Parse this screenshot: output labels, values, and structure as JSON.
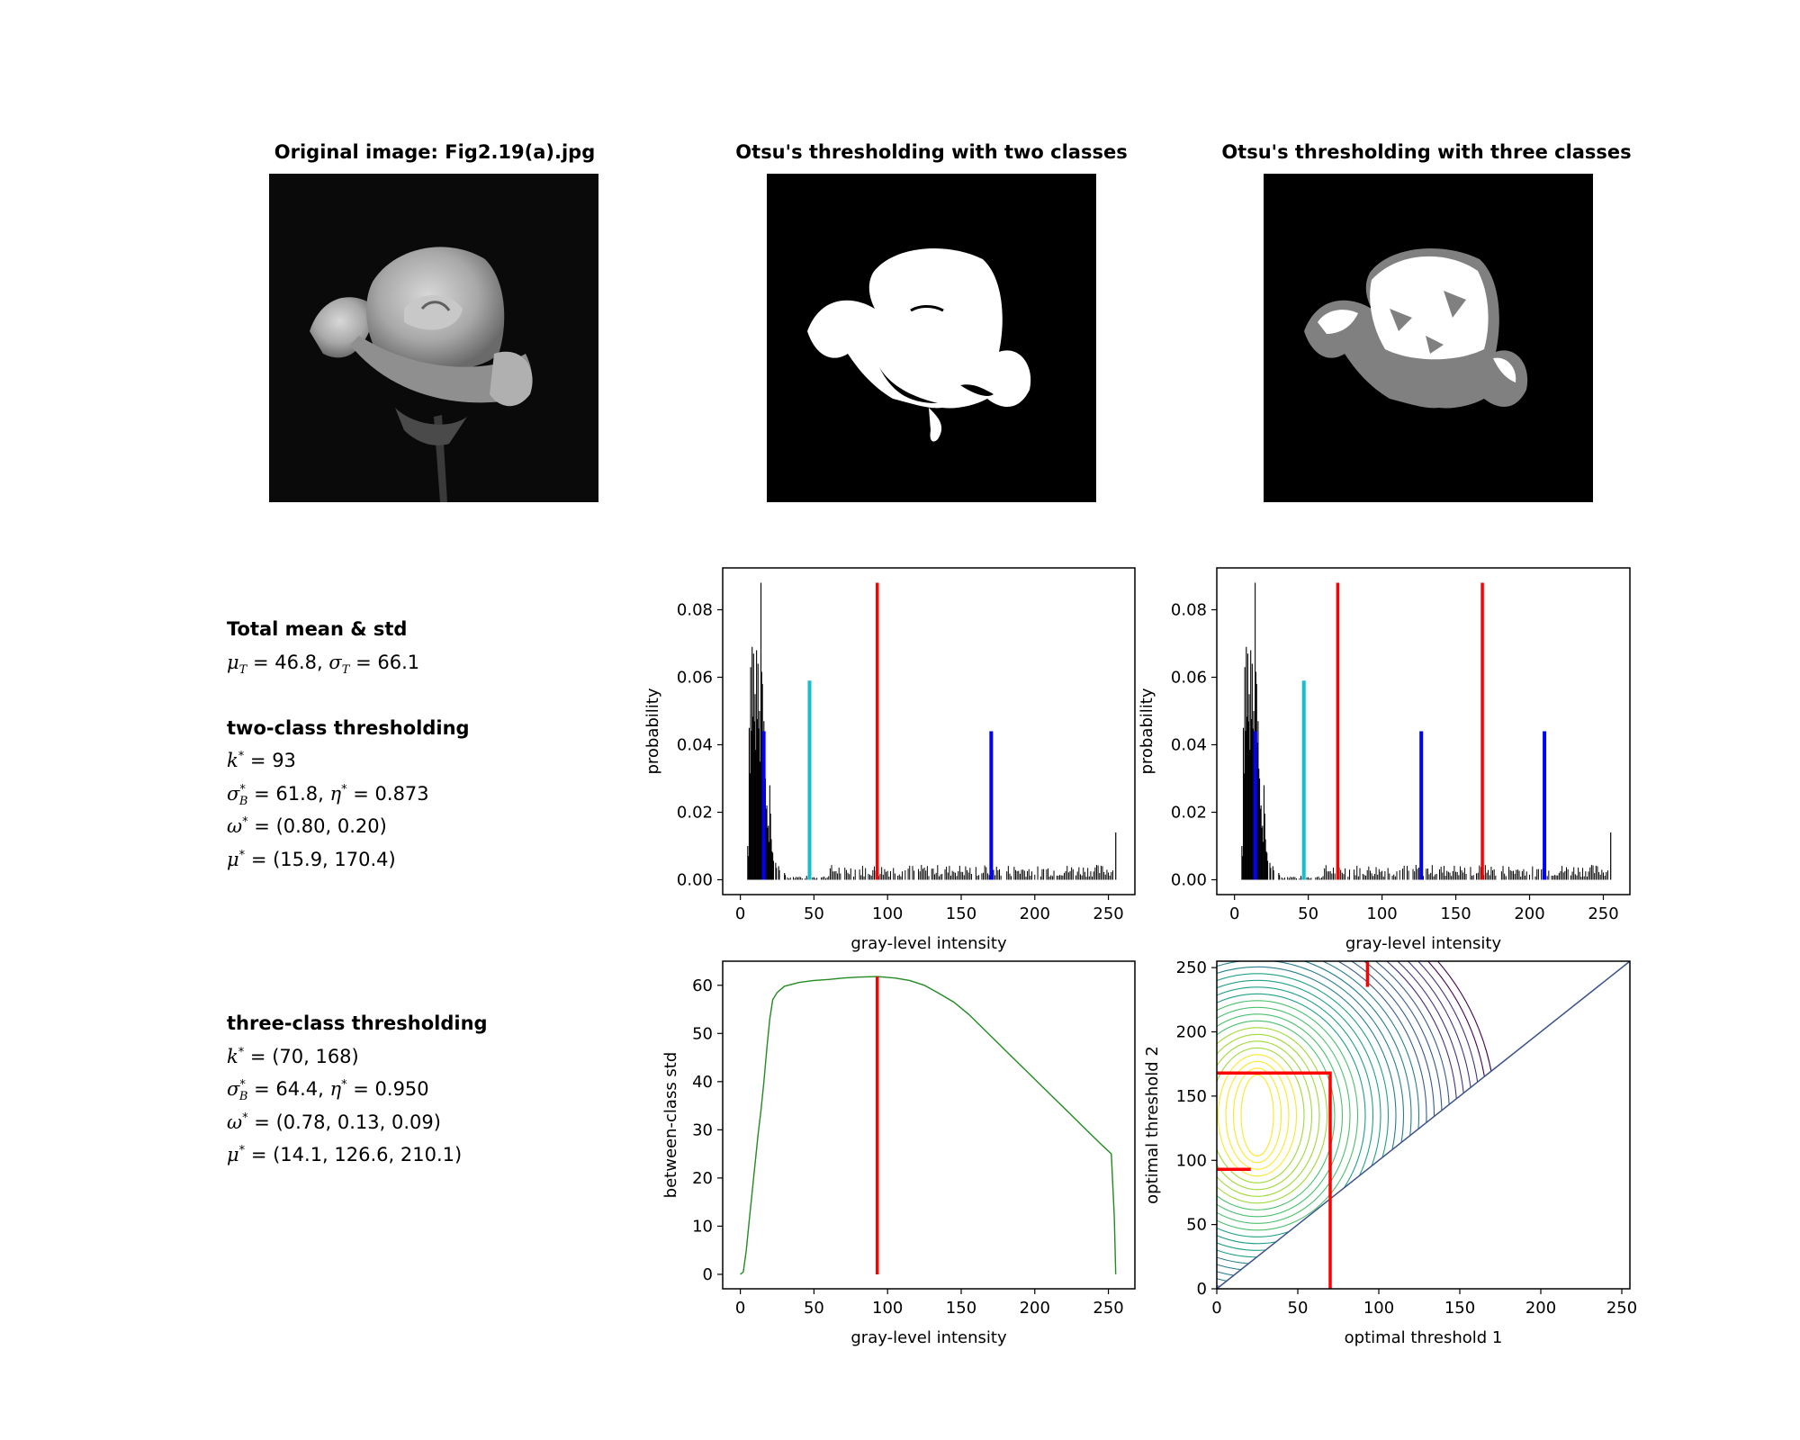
{
  "panels": {
    "original": {
      "title": "Original image: Fig2.19(a).jpg"
    },
    "two_class": {
      "title": "Otsu's thresholding with two classes"
    },
    "three_class": {
      "title": "Otsu's thresholding with three classes"
    }
  },
  "stats": {
    "total_heading": "Total mean & std",
    "mu_T": "46.8",
    "sigma_T": "66.1",
    "two": {
      "heading": "two-class thresholding",
      "k": "93",
      "sigma_B": "61.8",
      "eta": "0.873",
      "omega": "(0.80, 0.20)",
      "mu": "(15.9, 170.4)"
    },
    "three": {
      "heading": "three-class thresholding",
      "k": "(70, 168)",
      "sigma_B": "64.4",
      "eta": "0.950",
      "omega": "(0.78, 0.13, 0.09)",
      "mu": "(14.1, 126.6, 210.1)"
    }
  },
  "colors": {
    "red": "#ff0000",
    "blue": "#0000ff",
    "cyan": "#17becf",
    "green": "#228b22",
    "hist": "#000000"
  },
  "chart_data": [
    {
      "id": "hist_two",
      "type": "bar",
      "xlabel": "gray-level intensity",
      "ylabel": "probability",
      "xlim": [
        -12,
        268
      ],
      "ylim": [
        -0.0044,
        0.0924
      ],
      "xticks": [
        0,
        50,
        100,
        150,
        200,
        250
      ],
      "yticks": [
        0.0,
        0.02,
        0.04,
        0.06,
        0.08
      ],
      "ytick_labels": [
        "0.00",
        "0.02",
        "0.04",
        "0.06",
        "0.08"
      ],
      "histogram_peaks": [
        [
          5,
          0.01
        ],
        [
          6,
          0.045
        ],
        [
          7,
          0.063
        ],
        [
          8,
          0.069
        ],
        [
          9,
          0.067
        ],
        [
          10,
          0.055
        ],
        [
          11,
          0.068
        ],
        [
          12,
          0.064
        ],
        [
          13,
          0.05
        ],
        [
          14,
          0.088
        ],
        [
          15,
          0.058
        ],
        [
          16,
          0.047
        ],
        [
          17,
          0.03
        ],
        [
          18,
          0.022
        ],
        [
          19,
          0.016
        ],
        [
          20,
          0.028
        ],
        [
          21,
          0.012
        ],
        [
          22,
          0.008
        ],
        [
          24,
          0.005
        ],
        [
          26,
          0.004
        ],
        [
          30,
          0.002
        ]
      ],
      "histogram_tail_level": 0.003,
      "histogram_end": [
        255,
        0.014
      ],
      "markers": [
        {
          "x": 93,
          "y": 0.088,
          "color": "red"
        },
        {
          "x": 47,
          "y": 0.059,
          "color": "cyan"
        },
        {
          "x": 15.9,
          "y": 0.044,
          "color": "blue"
        },
        {
          "x": 170.4,
          "y": 0.044,
          "color": "blue"
        }
      ]
    },
    {
      "id": "hist_three",
      "type": "bar",
      "xlabel": "gray-level intensity",
      "ylabel": "probability",
      "xlim": [
        -12,
        268
      ],
      "ylim": [
        -0.0044,
        0.0924
      ],
      "xticks": [
        0,
        50,
        100,
        150,
        200,
        250
      ],
      "yticks": [
        0.0,
        0.02,
        0.04,
        0.06,
        0.08
      ],
      "ytick_labels": [
        "0.00",
        "0.02",
        "0.04",
        "0.06",
        "0.08"
      ],
      "markers": [
        {
          "x": 70,
          "y": 0.088,
          "color": "red"
        },
        {
          "x": 168,
          "y": 0.088,
          "color": "red"
        },
        {
          "x": 47,
          "y": 0.059,
          "color": "cyan"
        },
        {
          "x": 14.1,
          "y": 0.044,
          "color": "blue"
        },
        {
          "x": 126.6,
          "y": 0.044,
          "color": "blue"
        },
        {
          "x": 210.1,
          "y": 0.044,
          "color": "blue"
        }
      ]
    },
    {
      "id": "between_class",
      "type": "line",
      "xlabel": "gray-level intensity",
      "ylabel": "between-class std",
      "xlim": [
        -12,
        268
      ],
      "ylim": [
        -3,
        65
      ],
      "xticks": [
        0,
        50,
        100,
        150,
        200,
        250
      ],
      "yticks": [
        0,
        10,
        20,
        30,
        40,
        50,
        60
      ],
      "series": [
        {
          "x": [
            0,
            2,
            4,
            6,
            8,
            10,
            12,
            14,
            16,
            18,
            20,
            22,
            25,
            30,
            40,
            50,
            60,
            70,
            80,
            93,
            105,
            115,
            125,
            135,
            145,
            155,
            165,
            175,
            185,
            195,
            205,
            215,
            225,
            235,
            245,
            252,
            254,
            255
          ],
          "y": [
            0,
            0.5,
            5,
            11,
            17,
            23,
            29,
            34,
            40,
            47,
            53,
            57,
            58.5,
            59.8,
            60.6,
            61.0,
            61.2,
            61.5,
            61.7,
            61.8,
            61.5,
            61.0,
            60.0,
            58.3,
            56.5,
            54.0,
            51.0,
            48.0,
            45.0,
            42.0,
            39.0,
            36.0,
            33.0,
            30.0,
            27.0,
            25.0,
            12,
            0
          ]
        }
      ],
      "markers": [
        {
          "x": 93,
          "y": 61.8,
          "color": "red"
        }
      ]
    },
    {
      "id": "contour",
      "type": "contour",
      "xlabel": "optimal threshold 1",
      "ylabel": "optimal threshold 2",
      "xlim": [
        0,
        255
      ],
      "ylim": [
        0,
        255
      ],
      "xticks": [
        0,
        50,
        100,
        150,
        200,
        250
      ],
      "yticks": [
        0,
        50,
        100,
        150,
        200,
        250
      ],
      "optimum": [
        70,
        168
      ],
      "two_class_optimum": 93
    }
  ]
}
